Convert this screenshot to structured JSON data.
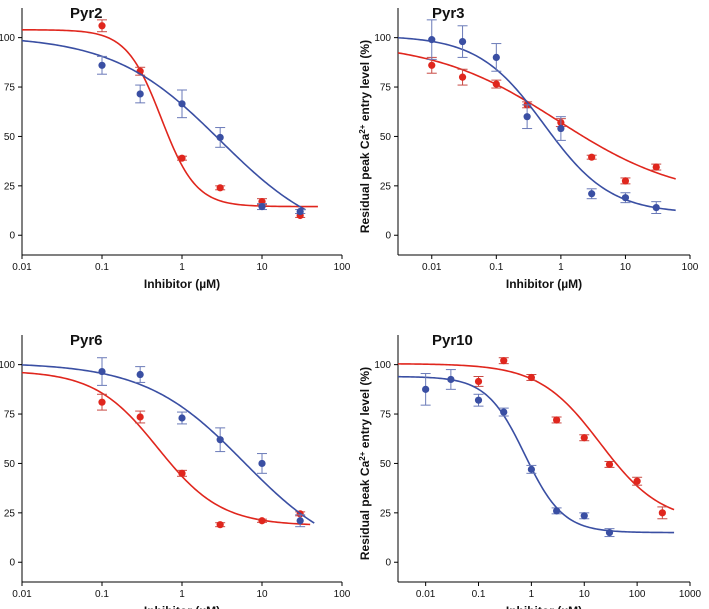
{
  "figure_xlabel": "Inhibitor (µM)",
  "ylabel_prefix": "Residual peak Ca",
  "ylabel_sup": "2+",
  "ylabel_suffix": " entry level (%)",
  "colors": {
    "red": "#e0261d",
    "blue": "#3a4fa3",
    "red_err": "#c84a44",
    "blue_err": "#6a7ab8"
  },
  "chart_data": [
    {
      "type": "scatter",
      "title": "Pyr2",
      "xscale": "log",
      "xlim": [
        0.01,
        100
      ],
      "ylim": [
        -10,
        115
      ],
      "xticks": [
        0.01,
        0.1,
        1,
        10,
        100
      ],
      "xtick_labels": [
        "0.01",
        "0.1",
        "1",
        "10",
        "100"
      ],
      "yticks": [
        0,
        25,
        50,
        75,
        100
      ],
      "ytick_labels": [
        "0",
        "25",
        "50",
        "75",
        "100"
      ],
      "series": [
        {
          "name": "red",
          "color": "#e0261d",
          "x": [
            0.1,
            0.3,
            1,
            3,
            10,
            30
          ],
          "y": [
            106,
            83,
            39,
            24,
            17,
            10
          ],
          "err": [
            3,
            2,
            1,
            1,
            1.5,
            1
          ],
          "fit": {
            "bottom": 14.5,
            "top": 104,
            "ic50": 0.55,
            "hill": 2.0,
            "xmin": 0.01,
            "xmax": 50
          }
        },
        {
          "name": "blue",
          "color": "#3a4fa3",
          "x": [
            0.1,
            0.3,
            1,
            3,
            10,
            30
          ],
          "y": [
            86,
            71.5,
            66.5,
            49.5,
            14.5,
            12
          ],
          "err": [
            4.5,
            4.5,
            7,
            5,
            1.5,
            1
          ],
          "fit": {
            "bottom": -5,
            "top": 101,
            "ic50": 3.0,
            "hill": 0.65,
            "xmin": 0.01,
            "xmax": 35
          }
        }
      ]
    },
    {
      "type": "scatter",
      "title": "Pyr3",
      "xscale": "log",
      "xlim": [
        0.003,
        100
      ],
      "ylim": [
        -10,
        115
      ],
      "xticks": [
        0.01,
        0.1,
        1,
        10,
        100
      ],
      "xtick_labels": [
        "0.01",
        "0.1",
        "1",
        "10",
        "100"
      ],
      "yticks": [
        0,
        25,
        50,
        75,
        100
      ],
      "ytick_labels": [
        "0",
        "25",
        "50",
        "75",
        "100"
      ],
      "series": [
        {
          "name": "red",
          "color": "#e0261d",
          "x": [
            0.01,
            0.03,
            0.1,
            0.3,
            1,
            3,
            10,
            30
          ],
          "y": [
            86,
            80,
            76.5,
            66,
            57,
            39.5,
            27.5,
            34.5
          ],
          "err": [
            4,
            4,
            2,
            1.5,
            2,
            1,
            1.5,
            1.5
          ],
          "fit": {
            "bottom": 18,
            "top": 98,
            "ic50": 0.9,
            "hill": 0.45,
            "xmin": 0.003,
            "xmax": 60
          }
        },
        {
          "name": "blue",
          "color": "#3a4fa3",
          "x": [
            0.01,
            0.03,
            0.1,
            0.3,
            1,
            3,
            10,
            30
          ],
          "y": [
            99,
            98,
            90,
            60,
            54,
            21,
            19,
            14
          ],
          "err": [
            10,
            8,
            7,
            6,
            6,
            2.5,
            2.5,
            3
          ],
          "fit": {
            "bottom": 11,
            "top": 101,
            "ic50": 0.55,
            "hill": 0.85,
            "xmin": 0.003,
            "xmax": 60
          }
        }
      ]
    },
    {
      "type": "scatter",
      "title": "Pyr6",
      "xscale": "log",
      "xlim": [
        0.01,
        100
      ],
      "ylim": [
        -10,
        115
      ],
      "xticks": [
        0.01,
        0.1,
        1,
        10,
        100
      ],
      "xtick_labels": [
        "0.01",
        "0.1",
        "1",
        "10",
        "100"
      ],
      "yticks": [
        0,
        25,
        50,
        75,
        100
      ],
      "ytick_labels": [
        "0",
        "25",
        "50",
        "75",
        "100"
      ],
      "series": [
        {
          "name": "red",
          "color": "#e0261d",
          "x": [
            0.1,
            0.3,
            1,
            3,
            10,
            30
          ],
          "y": [
            81,
            73.5,
            45,
            19,
            21,
            24.5
          ],
          "err": [
            4,
            3,
            1.5,
            1,
            0.8,
            1
          ],
          "fit": {
            "bottom": 18.5,
            "top": 97,
            "ic50": 0.5,
            "hill": 1.1,
            "xmin": 0.01,
            "xmax": 40
          }
        },
        {
          "name": "blue",
          "color": "#3a4fa3",
          "x": [
            0.1,
            0.3,
            1,
            3,
            10,
            30
          ],
          "y": [
            96.5,
            95,
            73,
            62,
            50,
            21
          ],
          "err": [
            7,
            4,
            3,
            6,
            5,
            3
          ],
          "fit": {
            "bottom": 0,
            "top": 101,
            "ic50": 6.0,
            "hill": 0.7,
            "xmin": 0.01,
            "xmax": 45
          }
        }
      ]
    },
    {
      "type": "scatter",
      "title": "Pyr10",
      "xscale": "log",
      "xlim": [
        0.003,
        1000
      ],
      "ylim": [
        -10,
        115
      ],
      "xticks": [
        0.01,
        0.1,
        1,
        10,
        100,
        1000
      ],
      "xtick_labels": [
        "0.01",
        "0.1",
        "1",
        "10",
        "100",
        "1000"
      ],
      "yticks": [
        0,
        25,
        50,
        75,
        100
      ],
      "ytick_labels": [
        "0",
        "25",
        "50",
        "75",
        "100"
      ],
      "series": [
        {
          "name": "red",
          "color": "#e0261d",
          "x": [
            0.1,
            0.3,
            1,
            3,
            10,
            30,
            100,
            300
          ],
          "y": [
            91.5,
            102,
            93.5,
            72,
            63,
            49.5,
            41,
            25
          ],
          "err": [
            2.5,
            1.5,
            1.5,
            1.5,
            1.5,
            1.5,
            2,
            3
          ],
          "fit": {
            "bottom": 20,
            "top": 100.5,
            "ic50": 20,
            "hill": 0.75,
            "xmin": 0.003,
            "xmax": 500
          }
        },
        {
          "name": "blue",
          "color": "#3a4fa3",
          "x": [
            0.01,
            0.03,
            0.1,
            0.3,
            1,
            3,
            10,
            30
          ],
          "y": [
            87.5,
            92.5,
            82,
            76,
            47,
            26,
            23.5,
            15
          ],
          "err": [
            8,
            5,
            3,
            2,
            2,
            1.5,
            1.5,
            2
          ],
          "fit": {
            "bottom": 15,
            "top": 94,
            "ic50": 0.75,
            "hill": 1.2,
            "xmin": 0.003,
            "xmax": 500
          }
        }
      ]
    }
  ]
}
